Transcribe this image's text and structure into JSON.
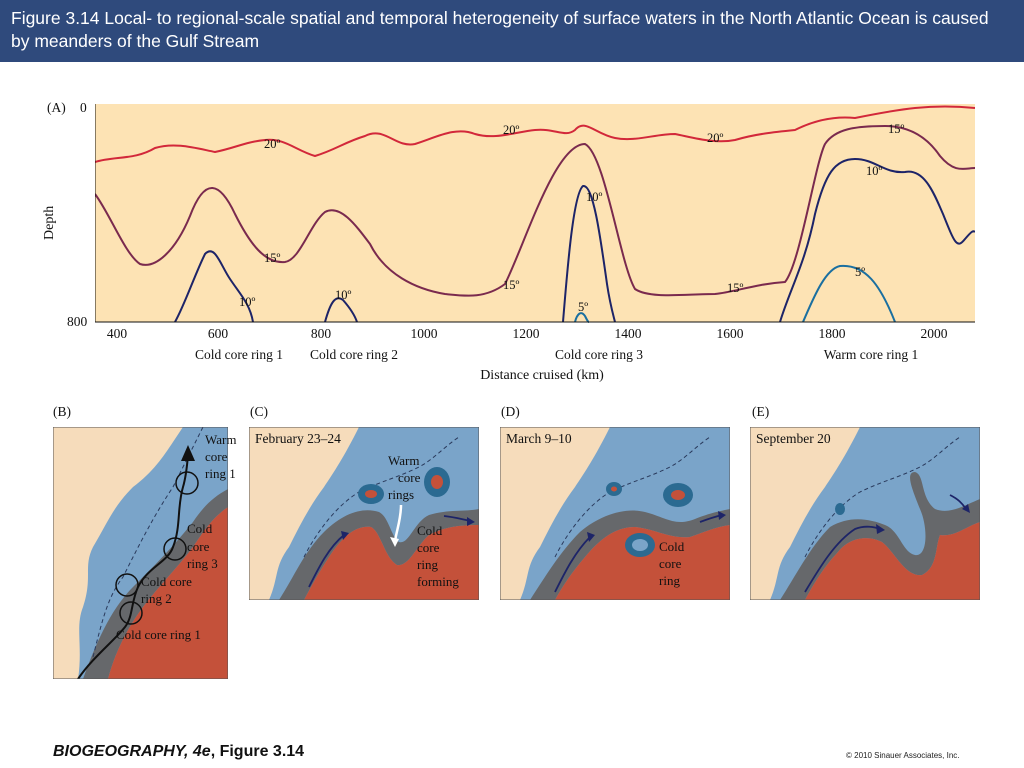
{
  "header": {
    "title": "Figure 3.14  Local- to regional-scale spatial and temporal heterogeneity of surface waters in the North Atlantic Ocean is caused by meanders of the Gulf Stream"
  },
  "panel_a": {
    "label": "(A)",
    "y_axis_label": "Depth",
    "y_ticks": [
      "0",
      "800"
    ],
    "x_ticks": [
      "400",
      "600",
      "800",
      "1000",
      "1200",
      "1400",
      "1600",
      "1800",
      "2000"
    ],
    "x_axis_label": "Distance cruised (km)",
    "features": [
      "Cold core ring 1",
      "Cold core ring 2",
      "Cold core ring 3",
      "Warm core ring 1"
    ],
    "isotherm_labels": [
      "20º",
      "20º",
      "20º",
      "15º",
      "15º",
      "15º",
      "15º",
      "10º",
      "10º",
      "10º",
      "10º",
      "5º",
      "5º"
    ],
    "colors": {
      "background": "#fde3b4",
      "isotherm_20": "#d2283a",
      "isotherm_15": "#7a2a4e",
      "isotherm_10": "#1d2468",
      "isotherm_5": "#1a6fa0"
    }
  },
  "panel_b": {
    "label": "(B)",
    "labels": [
      "Warm",
      "core",
      "ring 1",
      "Cold",
      "core",
      "ring 3",
      "Cold core",
      "ring 2",
      "Cold core ring 1"
    ]
  },
  "panel_c": {
    "label": "(C)",
    "date": "February 23–24",
    "labels": [
      "Warm",
      "core",
      "rings",
      "Cold",
      "core",
      "ring",
      "forming"
    ]
  },
  "panel_d": {
    "label": "(D)",
    "date": "March 9–10",
    "labels": [
      "Cold",
      "core",
      "ring"
    ]
  },
  "panel_e": {
    "label": "(E)",
    "date": "September 20"
  },
  "map_colors": {
    "land": "#f6dcbb",
    "cold_water": "#7aa4c9",
    "gulf_stream": "#66686b",
    "warm_water": "#c4513a"
  },
  "footer": {
    "book": "BIOGEOGRAPHY, 4e",
    "figure": ", Figure 3.14",
    "copyright": "© 2010 Sinauer Associates, Inc."
  }
}
